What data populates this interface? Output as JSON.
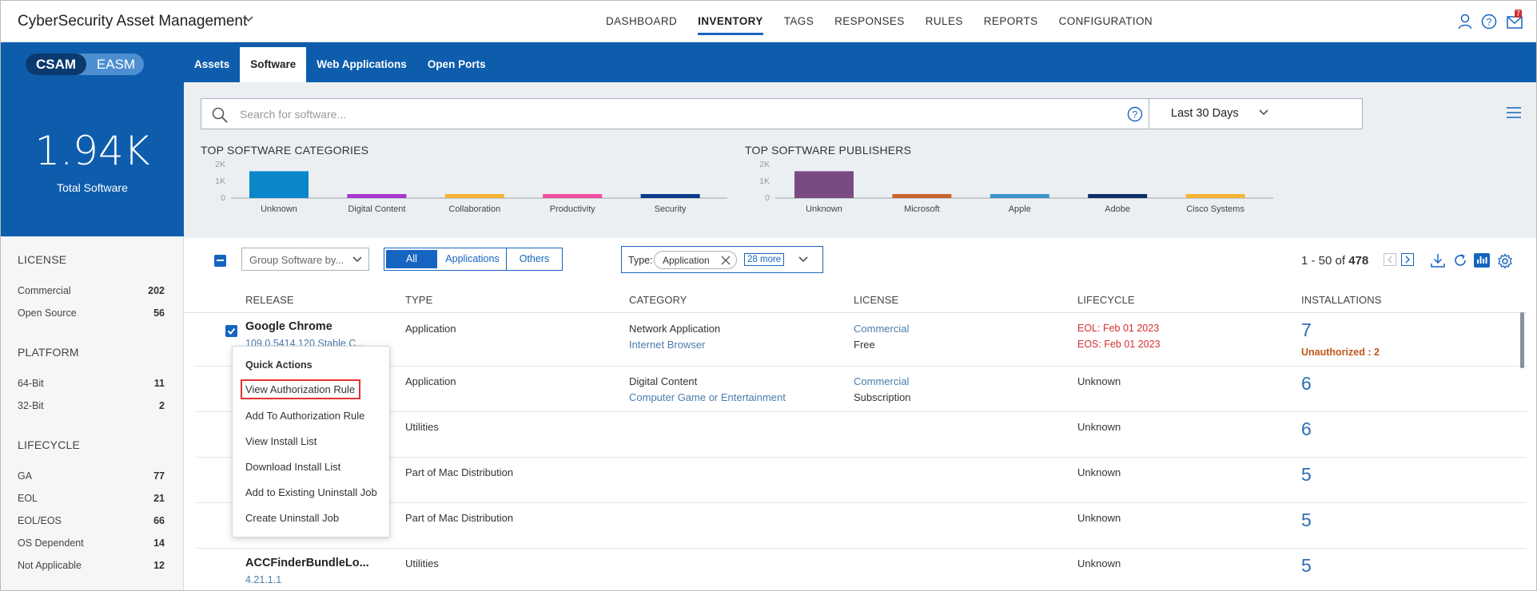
{
  "header": {
    "app_title": "CyberSecurity Asset Management",
    "nav": [
      "DASHBOARD",
      "INVENTORY",
      "TAGS",
      "RESPONSES",
      "RULES",
      "REPORTS",
      "CONFIGURATION"
    ],
    "active_nav": "INVENTORY",
    "notification_count": "7",
    "icons": [
      "user-icon",
      "help-icon",
      "mail-icon"
    ]
  },
  "subbar": {
    "toggle_on": "CSAM",
    "toggle_off": "EASM",
    "tabs": [
      "Assets",
      "Software",
      "Web Applications",
      "Open Ports"
    ],
    "active_tab": "Software"
  },
  "summary": {
    "total_value": "1.94K",
    "total_label": "Total Software"
  },
  "filters": {
    "license": {
      "title": "LICENSE",
      "items": [
        {
          "label": "Commercial",
          "count": "202"
        },
        {
          "label": "Open Source",
          "count": "56"
        }
      ]
    },
    "platform": {
      "title": "PLATFORM",
      "items": [
        {
          "label": "64-Bit",
          "count": "11"
        },
        {
          "label": "32-Bit",
          "count": "2"
        }
      ]
    },
    "lifecycle": {
      "title": "LIFECYCLE",
      "items": [
        {
          "label": "GA",
          "count": "77"
        },
        {
          "label": "EOL",
          "count": "21"
        },
        {
          "label": "EOL/EOS",
          "count": "66"
        },
        {
          "label": "OS Dependent",
          "count": "14"
        },
        {
          "label": "Not Applicable",
          "count": "12"
        }
      ]
    }
  },
  "search": {
    "placeholder": "Search for software...",
    "range": "Last 30 Days"
  },
  "chart_data": [
    {
      "type": "bar",
      "title": "TOP SOFTWARE CATEGORIES",
      "categories": [
        "Unknown",
        "Digital Content",
        "Collaboration",
        "Productivity",
        "Security"
      ],
      "values": [
        1600,
        180,
        160,
        170,
        170
      ],
      "colors": [
        "#0a87c9",
        "#a637c9",
        "#f5b335",
        "#f04d9e",
        "#0b3c8a"
      ],
      "yticks": [
        "2K",
        "1K",
        "0"
      ],
      "ylim": [
        0,
        2000
      ]
    },
    {
      "type": "bar",
      "title": "TOP SOFTWARE PUBLISHERS",
      "categories": [
        "Unknown",
        "Microsoft",
        "Apple",
        "Adobe",
        "Cisco Systems"
      ],
      "values": [
        1600,
        150,
        150,
        150,
        150
      ],
      "colors": [
        "#7a4b82",
        "#c9622a",
        "#3a94c9",
        "#0b2f66",
        "#f5b335"
      ],
      "yticks": [
        "2K",
        "1K",
        "0"
      ],
      "ylim": [
        0,
        2000
      ]
    }
  ],
  "toolbar": {
    "group_by": "Group Software by...",
    "segments": [
      "All",
      "Applications",
      "Others"
    ],
    "active_segment": "All",
    "type_label": "Type:",
    "type_chip": "Application",
    "more": "28 more",
    "pager_prefix": "1 - 50 of",
    "pager_total": "478"
  },
  "table": {
    "columns": [
      "RELEASE",
      "TYPE",
      "CATEGORY",
      "LICENSE",
      "LIFECYCLE",
      "INSTALLATIONS"
    ],
    "rows": [
      {
        "name": "Google Chrome",
        "version": "109.0.5414.120 Stable C...",
        "type": "Application",
        "category": "Network Application",
        "subcategory": "Internet Browser",
        "license": "Commercial",
        "license_type": "Free",
        "eol": "EOL: Feb 01 2023",
        "eos": "EOS: Feb 01 2023",
        "installations": "7",
        "unauthorized": "Unauthorized : 2"
      },
      {
        "type": "Application",
        "category": "Digital Content",
        "subcategory": "Computer Game or Entertainment",
        "license": "Commercial",
        "license_type": "Subscription",
        "lifecycle": "Unknown",
        "installations": "6"
      },
      {
        "type": "Utilities",
        "lifecycle": "Unknown",
        "installations": "6"
      },
      {
        "type": "Part of Mac Distribution",
        "lifecycle": "Unknown",
        "installations": "5"
      },
      {
        "type": "Part of Mac Distribution",
        "lifecycle": "Unknown",
        "installations": "5"
      },
      {
        "name": "ACCFinderBundleLo...",
        "version": "4.21.1.1",
        "type": "Utilities",
        "lifecycle": "Unknown",
        "installations": "5"
      }
    ]
  },
  "quick_actions": {
    "title": "Quick Actions",
    "items": [
      "View Authorization Rule",
      "Add To Authorization Rule",
      "View Install List",
      "Download Install List",
      "Add to Existing Uninstall Job",
      "Create Uninstall Job"
    ],
    "highlighted": "View Authorization Rule"
  }
}
